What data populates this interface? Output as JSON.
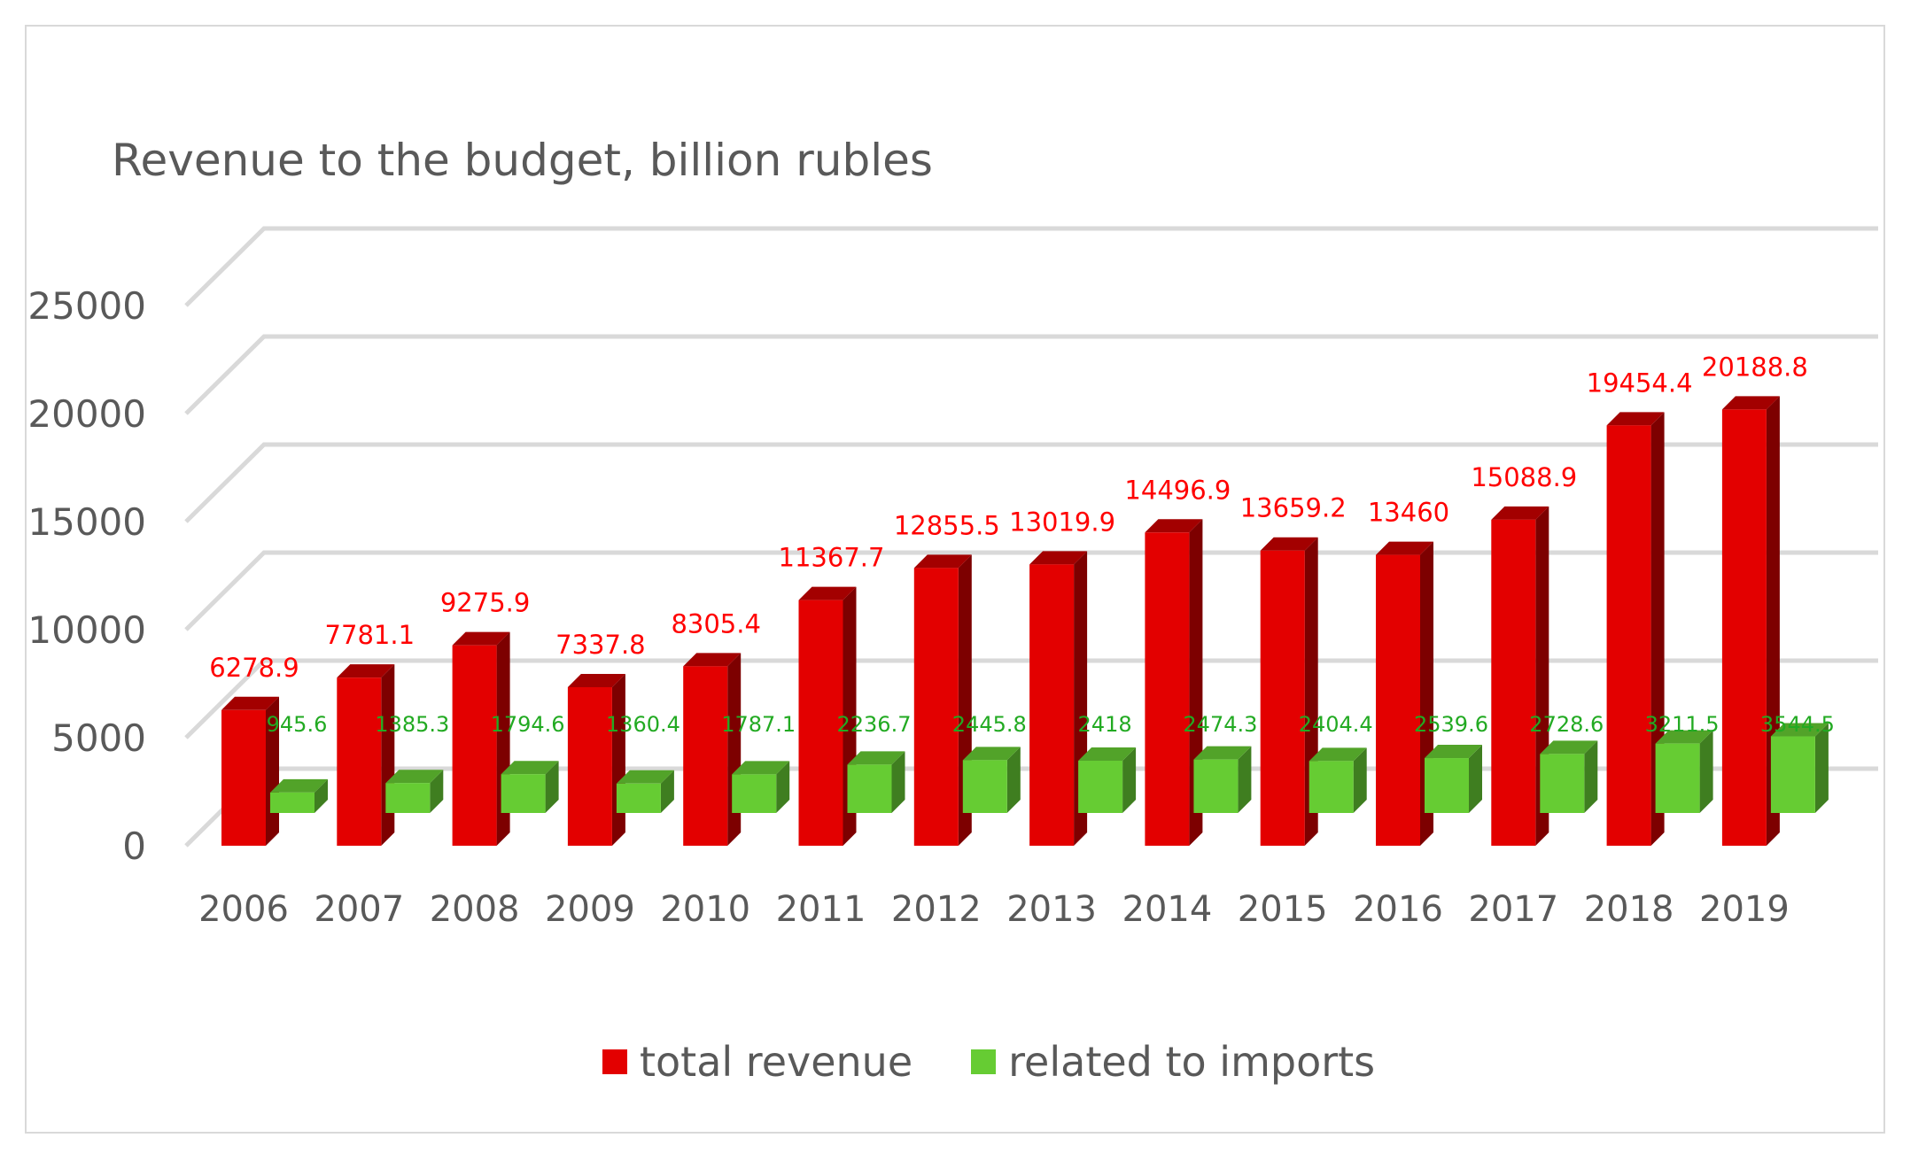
{
  "chart_data": {
    "type": "bar",
    "title": "Revenue to the budget, billion rubles",
    "categories": [
      "2006",
      "2007",
      "2008",
      "2009",
      "2010",
      "2011",
      "2012",
      "2013",
      "2014",
      "2015",
      "2016",
      "2017",
      "2018",
      "2019"
    ],
    "series": [
      {
        "name": "total revenue",
        "color": "#e30000",
        "values": [
          6278.9,
          7781.1,
          9275.9,
          7337.8,
          8305.4,
          11367.7,
          12855.5,
          13019.9,
          14496.9,
          13659.2,
          13460,
          15088.9,
          19454.4,
          20188.8
        ]
      },
      {
        "name": "related to imports",
        "color": "#66cc33",
        "values": [
          945.6,
          1385.3,
          1794.6,
          1360.4,
          1787.1,
          2236.7,
          2445.8,
          2418,
          2474.3,
          2404.4,
          2539.6,
          2728.6,
          3211.5,
          3544.5
        ]
      }
    ],
    "yticks": [
      0,
      5000,
      10000,
      15000,
      20000,
      25000
    ],
    "ylim": [
      0,
      25000
    ],
    "grid": true,
    "legend_position": "bottom",
    "label_colors": {
      "total revenue": "#ff0000",
      "related to imports": "#22aa22"
    }
  }
}
